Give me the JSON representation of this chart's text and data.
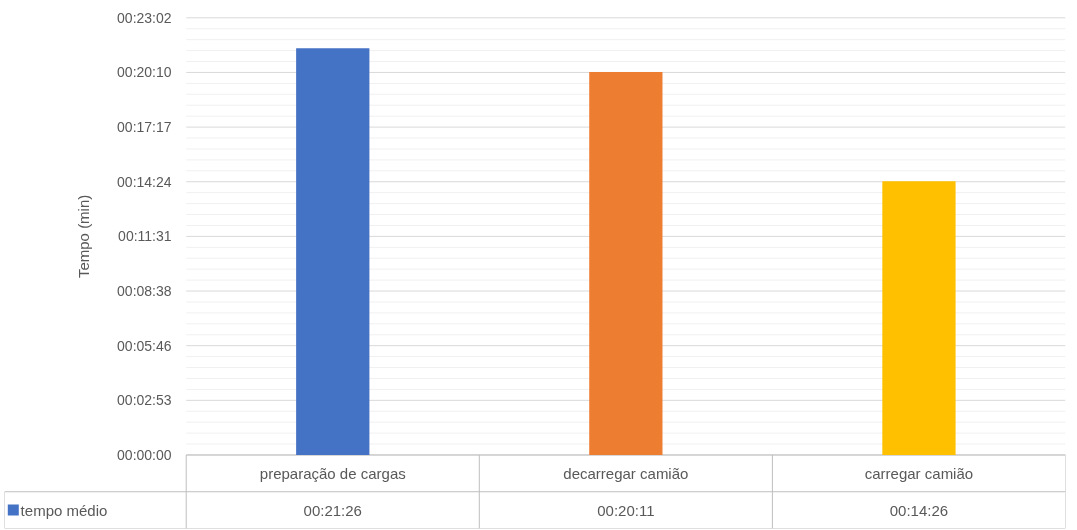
{
  "chart_data": {
    "type": "bar",
    "ylabel": "Tempo (min)",
    "categories": [
      "preparação de cargas",
      "decarregar camião",
      "carregar camião"
    ],
    "series": [
      {
        "name": "tempo médio",
        "colors": [
          "#4472c4",
          "#ed7d31",
          "#ffc000"
        ],
        "values": [
          21.43,
          20.18,
          14.43
        ],
        "value_labels": [
          "00:21:26",
          "00:20:11",
          "00:14:26"
        ]
      }
    ],
    "ylim": [
      0,
      23.04
    ],
    "yticks": [
      {
        "value": 0,
        "label": "00:00:00"
      },
      {
        "value": 2.88,
        "label": "00:02:53"
      },
      {
        "value": 5.76,
        "label": "00:05:46"
      },
      {
        "value": 8.64,
        "label": "00:08:38"
      },
      {
        "value": 11.52,
        "label": "00:11:31"
      },
      {
        "value": 14.4,
        "label": "00:14:24"
      },
      {
        "value": 17.28,
        "label": "00:17:17"
      },
      {
        "value": 20.16,
        "label": "00:20:10"
      },
      {
        "value": 23.04,
        "label": "00:23:02"
      }
    ],
    "grid": "y"
  }
}
